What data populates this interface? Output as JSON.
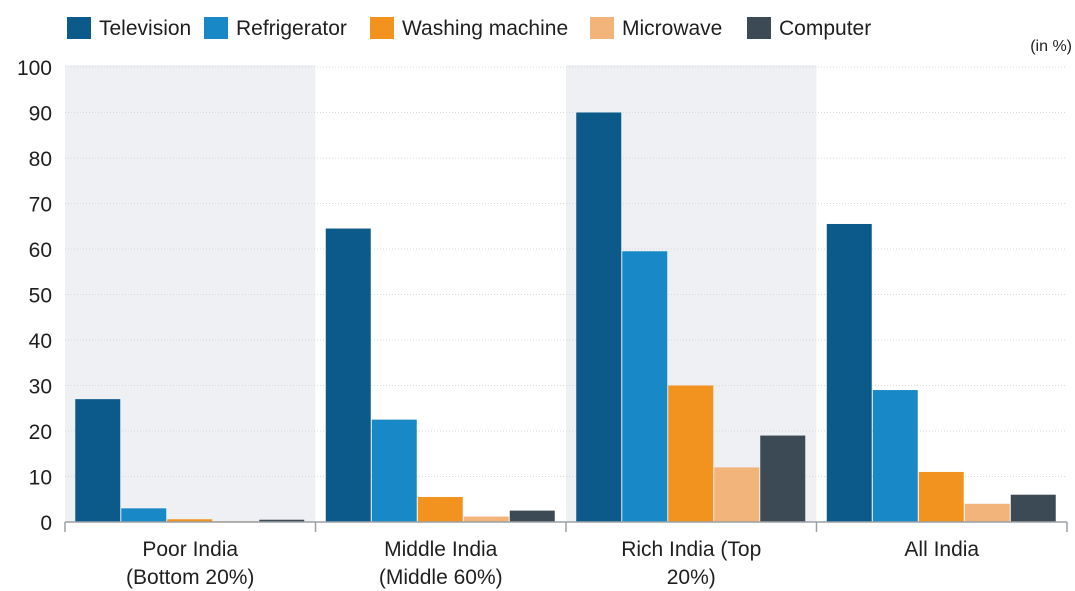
{
  "chart_data": {
    "type": "bar",
    "unit_label": "(in %)",
    "categories": [
      [
        "Poor India",
        "(Bottom 20%)"
      ],
      [
        "Middle India",
        "(Middle 60%)"
      ],
      [
        "Rich India (Top",
        "20%)"
      ],
      [
        "All India"
      ]
    ],
    "series": [
      {
        "name": "Television",
        "color": "#0b5a8a",
        "values": [
          27,
          64.5,
          90,
          65.5
        ]
      },
      {
        "name": "Refrigerator",
        "color": "#1889c6",
        "values": [
          3,
          22.5,
          59.5,
          29
        ]
      },
      {
        "name": "Washing machine",
        "color": "#f2921f",
        "values": [
          0.6,
          5.5,
          30,
          11
        ]
      },
      {
        "name": "Microwave",
        "color": "#f2b47a",
        "values": [
          0.2,
          1.2,
          12,
          4
        ]
      },
      {
        "name": "Computer",
        "color": "#3b4a55",
        "values": [
          0.5,
          2.5,
          19,
          6
        ]
      }
    ],
    "ylim": [
      0,
      100
    ],
    "yticks": [
      0,
      10,
      20,
      30,
      40,
      50,
      60,
      70,
      80,
      90,
      100
    ],
    "grid": true,
    "legend_position": "top-left",
    "shaded_bands": [
      0,
      2
    ],
    "band_color": "#eef0f3"
  }
}
